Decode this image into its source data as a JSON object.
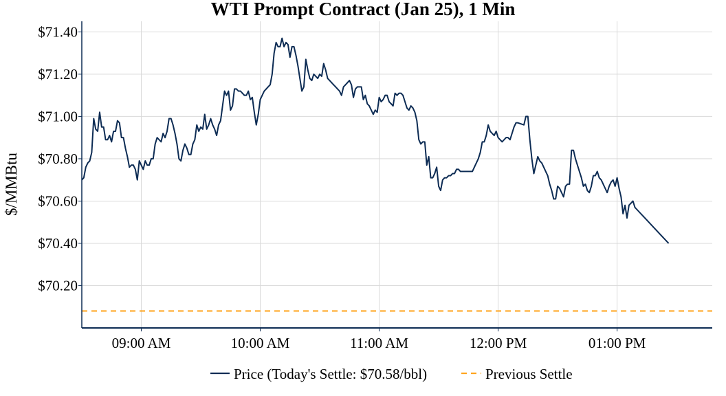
{
  "chart_data": {
    "type": "line",
    "title": "WTI Prompt Contract (Jan 25), 1 Min",
    "xlabel": "",
    "ylabel": "$/MMBtu",
    "x_axis": {
      "ticks": [
        "09:00 AM",
        "10:00 AM",
        "11:00 AM",
        "12:00 PM",
        "01:00 PM"
      ],
      "range": [
        "08:30",
        "13:48"
      ]
    },
    "y_axis": {
      "ticks": [
        "$70.20",
        "$70.40",
        "$70.60",
        "$70.80",
        "$71.00",
        "$71.20",
        "$71.40"
      ],
      "tick_values": [
        70.2,
        70.4,
        70.6,
        70.8,
        71.0,
        71.2,
        71.4
      ],
      "ylim": [
        70.0,
        71.45
      ]
    },
    "grid": true,
    "legend_position": "bottom-center",
    "series": [
      {
        "name": "Price (Today's Settle: $70.58/bbl)",
        "color": "#0d2c54",
        "style": "solid",
        "points": [
          [
            "08:30",
            70.7
          ],
          [
            "08:31",
            70.71
          ],
          [
            "08:32",
            70.76
          ],
          [
            "08:33",
            70.78
          ],
          [
            "08:34",
            70.79
          ],
          [
            "08:35",
            70.83
          ],
          [
            "08:36",
            70.99
          ],
          [
            "08:37",
            70.94
          ],
          [
            "08:38",
            70.93
          ],
          [
            "08:39",
            71.02
          ],
          [
            "08:40",
            70.95
          ],
          [
            "08:41",
            70.95
          ],
          [
            "08:42",
            70.89
          ],
          [
            "08:43",
            70.89
          ],
          [
            "08:44",
            70.91
          ],
          [
            "08:45",
            70.88
          ],
          [
            "08:46",
            70.93
          ],
          [
            "08:47",
            70.93
          ],
          [
            "08:48",
            70.98
          ],
          [
            "08:49",
            70.97
          ],
          [
            "08:50",
            70.9
          ],
          [
            "08:51",
            70.9
          ],
          [
            "08:52",
            70.85
          ],
          [
            "08:53",
            70.81
          ],
          [
            "08:54",
            70.76
          ],
          [
            "08:55",
            70.77
          ],
          [
            "08:56",
            70.77
          ],
          [
            "08:57",
            70.75
          ],
          [
            "08:58",
            70.7
          ],
          [
            "08:59",
            70.79
          ],
          [
            "09:00",
            70.77
          ],
          [
            "09:01",
            70.75
          ],
          [
            "09:02",
            70.79
          ],
          [
            "09:03",
            70.77
          ],
          [
            "09:04",
            70.77
          ],
          [
            "09:05",
            70.8
          ],
          [
            "09:06",
            70.8
          ],
          [
            "09:07",
            70.87
          ],
          [
            "09:08",
            70.9
          ],
          [
            "09:09",
            70.89
          ],
          [
            "09:10",
            70.88
          ],
          [
            "09:11",
            70.92
          ],
          [
            "09:12",
            70.9
          ],
          [
            "09:13",
            70.93
          ],
          [
            "09:14",
            70.99
          ],
          [
            "09:15",
            70.99
          ],
          [
            "09:16",
            70.96
          ],
          [
            "09:17",
            70.92
          ],
          [
            "09:18",
            70.87
          ],
          [
            "09:19",
            70.8
          ],
          [
            "09:20",
            70.79
          ],
          [
            "09:21",
            70.84
          ],
          [
            "09:22",
            70.87
          ],
          [
            "09:23",
            70.85
          ],
          [
            "09:24",
            70.82
          ],
          [
            "09:25",
            70.82
          ],
          [
            "09:26",
            70.87
          ],
          [
            "09:27",
            70.89
          ],
          [
            "09:28",
            70.96
          ],
          [
            "09:29",
            70.93
          ],
          [
            "09:30",
            70.95
          ],
          [
            "09:31",
            70.94
          ],
          [
            "09:32",
            71.01
          ],
          [
            "09:33",
            70.94
          ],
          [
            "09:34",
            70.96
          ],
          [
            "09:35",
            70.99
          ],
          [
            "09:36",
            70.96
          ],
          [
            "09:37",
            70.94
          ],
          [
            "09:38",
            70.91
          ],
          [
            "09:39",
            70.96
          ],
          [
            "09:40",
            70.98
          ],
          [
            "09:41",
            71.05
          ],
          [
            "09:42",
            71.12
          ],
          [
            "09:43",
            71.1
          ],
          [
            "09:44",
            71.12
          ],
          [
            "09:45",
            71.03
          ],
          [
            "09:46",
            71.05
          ],
          [
            "09:47",
            71.13
          ],
          [
            "09:48",
            71.13
          ],
          [
            "09:49",
            71.12
          ],
          [
            "09:50",
            71.12
          ],
          [
            "09:51",
            71.11
          ],
          [
            "09:52",
            71.1
          ],
          [
            "09:53",
            71.1
          ],
          [
            "09:54",
            71.12
          ],
          [
            "09:55",
            71.08
          ],
          [
            "09:56",
            71.09
          ],
          [
            "09:57",
            71.02
          ],
          [
            "09:58",
            70.96
          ],
          [
            "09:59",
            71.01
          ],
          [
            "10:00",
            71.08
          ],
          [
            "10:01",
            71.1
          ],
          [
            "10:02",
            71.12
          ],
          [
            "10:03",
            71.13
          ],
          [
            "10:04",
            71.14
          ],
          [
            "10:05",
            71.15
          ],
          [
            "10:06",
            71.2
          ],
          [
            "10:07",
            71.3
          ],
          [
            "10:08",
            71.35
          ],
          [
            "10:09",
            71.33
          ],
          [
            "10:10",
            71.33
          ],
          [
            "10:11",
            71.37
          ],
          [
            "10:12",
            71.33
          ],
          [
            "10:13",
            71.35
          ],
          [
            "10:14",
            71.34
          ],
          [
            "10:15",
            71.28
          ],
          [
            "10:16",
            71.33
          ],
          [
            "10:17",
            71.33
          ],
          [
            "10:18",
            71.29
          ],
          [
            "10:19",
            71.24
          ],
          [
            "10:20",
            71.18
          ],
          [
            "10:21",
            71.12
          ],
          [
            "10:22",
            71.14
          ],
          [
            "10:23",
            71.27
          ],
          [
            "10:24",
            71.22
          ],
          [
            "10:25",
            71.18
          ],
          [
            "10:26",
            71.17
          ],
          [
            "10:27",
            71.2
          ],
          [
            "10:28",
            71.19
          ],
          [
            "10:29",
            71.18
          ],
          [
            "10:30",
            71.2
          ],
          [
            "10:31",
            71.19
          ],
          [
            "10:32",
            71.25
          ],
          [
            "10:33",
            71.22
          ],
          [
            "10:34",
            71.18
          ],
          [
            "10:35",
            71.17
          ],
          [
            "10:36",
            71.16
          ],
          [
            "10:37",
            71.15
          ],
          [
            "10:38",
            71.14
          ],
          [
            "10:39",
            71.13
          ],
          [
            "10:40",
            71.12
          ],
          [
            "10:41",
            71.1
          ],
          [
            "10:42",
            71.14
          ],
          [
            "10:43",
            71.15
          ],
          [
            "10:44",
            71.16
          ],
          [
            "10:45",
            71.17
          ],
          [
            "10:46",
            71.15
          ],
          [
            "10:47",
            71.09
          ],
          [
            "10:48",
            71.13
          ],
          [
            "10:49",
            71.14
          ],
          [
            "10:50",
            71.14
          ],
          [
            "10:51",
            71.14
          ],
          [
            "10:52",
            71.08
          ],
          [
            "10:53",
            71.1
          ],
          [
            "10:54",
            71.06
          ],
          [
            "10:55",
            71.05
          ],
          [
            "10:56",
            71.03
          ],
          [
            "10:57",
            71.01
          ],
          [
            "10:58",
            71.03
          ],
          [
            "10:59",
            71.02
          ],
          [
            "11:00",
            71.09
          ],
          [
            "11:01",
            71.07
          ],
          [
            "11:02",
            71.08
          ],
          [
            "11:03",
            71.1
          ],
          [
            "11:04",
            71.1
          ],
          [
            "11:05",
            71.07
          ],
          [
            "11:06",
            71.06
          ],
          [
            "11:07",
            71.05
          ],
          [
            "11:08",
            71.11
          ],
          [
            "11:09",
            71.1
          ],
          [
            "11:10",
            71.11
          ],
          [
            "11:11",
            71.11
          ],
          [
            "11:12",
            71.1
          ],
          [
            "11:13",
            71.07
          ],
          [
            "11:14",
            71.04
          ],
          [
            "11:15",
            71.03
          ],
          [
            "11:16",
            71.05
          ],
          [
            "11:17",
            71.04
          ],
          [
            "11:18",
            71.02
          ],
          [
            "11:19",
            70.98
          ],
          [
            "11:20",
            70.89
          ],
          [
            "11:21",
            70.87
          ],
          [
            "11:22",
            70.88
          ],
          [
            "11:23",
            70.88
          ],
          [
            "11:24",
            70.77
          ],
          [
            "11:25",
            70.81
          ],
          [
            "11:26",
            70.71
          ],
          [
            "11:27",
            70.71
          ],
          [
            "11:28",
            70.73
          ],
          [
            "11:29",
            70.76
          ],
          [
            "11:30",
            70.67
          ],
          [
            "11:31",
            70.65
          ],
          [
            "11:32",
            70.7
          ],
          [
            "11:33",
            70.71
          ],
          [
            "11:34",
            70.71
          ],
          [
            "11:35",
            70.72
          ],
          [
            "11:36",
            70.72
          ],
          [
            "11:37",
            70.73
          ],
          [
            "11:38",
            70.73
          ],
          [
            "11:39",
            70.75
          ],
          [
            "11:40",
            70.75
          ],
          [
            "11:41",
            70.74
          ],
          [
            "11:42",
            70.74
          ],
          [
            "11:47",
            70.74
          ],
          [
            "11:48",
            70.76
          ],
          [
            "11:49",
            70.78
          ],
          [
            "11:50",
            70.8
          ],
          [
            "11:51",
            70.83
          ],
          [
            "11:52",
            70.88
          ],
          [
            "11:53",
            70.88
          ],
          [
            "11:54",
            70.91
          ],
          [
            "11:55",
            70.96
          ],
          [
            "11:56",
            70.93
          ],
          [
            "11:57",
            70.92
          ],
          [
            "11:58",
            70.91
          ],
          [
            "11:59",
            70.93
          ],
          [
            "12:00",
            70.9
          ],
          [
            "12:01",
            70.89
          ],
          [
            "12:02",
            70.88
          ],
          [
            "12:03",
            70.89
          ],
          [
            "12:04",
            70.9
          ],
          [
            "12:05",
            70.9
          ],
          [
            "12:06",
            70.89
          ],
          [
            "12:07",
            70.92
          ],
          [
            "12:08",
            70.95
          ],
          [
            "12:09",
            70.97
          ],
          [
            "12:10",
            70.97
          ],
          [
            "12:13",
            70.96
          ],
          [
            "12:14",
            71.0
          ],
          [
            "12:15",
            71.0
          ],
          [
            "12:16",
            70.89
          ],
          [
            "12:17",
            70.8
          ],
          [
            "12:18",
            70.73
          ],
          [
            "12:19",
            70.77
          ],
          [
            "12:20",
            70.81
          ],
          [
            "12:21",
            70.79
          ],
          [
            "12:22",
            70.78
          ],
          [
            "12:23",
            70.76
          ],
          [
            "12:24",
            70.74
          ],
          [
            "12:25",
            70.72
          ],
          [
            "12:26",
            70.68
          ],
          [
            "12:27",
            70.65
          ],
          [
            "12:28",
            70.61
          ],
          [
            "12:29",
            70.61
          ],
          [
            "12:30",
            70.67
          ],
          [
            "12:31",
            70.66
          ],
          [
            "12:32",
            70.64
          ],
          [
            "12:33",
            70.62
          ],
          [
            "12:34",
            70.67
          ],
          [
            "12:35",
            70.68
          ],
          [
            "12:36",
            70.68
          ],
          [
            "12:37",
            70.84
          ],
          [
            "12:38",
            70.84
          ],
          [
            "12:39",
            70.8
          ],
          [
            "12:40",
            70.77
          ],
          [
            "12:41",
            70.74
          ],
          [
            "12:42",
            70.71
          ],
          [
            "12:43",
            70.67
          ],
          [
            "12:44",
            70.68
          ],
          [
            "12:45",
            70.65
          ],
          [
            "12:46",
            70.64
          ],
          [
            "12:47",
            70.67
          ],
          [
            "12:48",
            70.72
          ],
          [
            "12:49",
            70.72
          ],
          [
            "12:50",
            70.74
          ],
          [
            "12:51",
            70.71
          ],
          [
            "12:52",
            70.7
          ],
          [
            "12:53",
            70.68
          ],
          [
            "12:54",
            70.66
          ],
          [
            "12:55",
            70.64
          ],
          [
            "12:56",
            70.67
          ],
          [
            "12:57",
            70.69
          ],
          [
            "12:58",
            70.7
          ],
          [
            "12:59",
            70.67
          ],
          [
            "13:00",
            70.71
          ],
          [
            "13:01",
            70.66
          ],
          [
            "13:02",
            70.62
          ],
          [
            "13:03",
            70.54
          ],
          [
            "13:04",
            70.58
          ],
          [
            "13:05",
            70.52
          ],
          [
            "13:06",
            70.58
          ],
          [
            "13:07",
            70.59
          ],
          [
            "13:08",
            70.6
          ],
          [
            "13:09",
            70.57
          ],
          [
            "13:10",
            70.56
          ],
          [
            "13:13",
            70.53
          ],
          [
            "13:16",
            70.5
          ],
          [
            "13:20",
            70.46
          ],
          [
            "13:24",
            70.42
          ],
          [
            "13:26",
            70.4
          ]
        ]
      },
      {
        "name": "Previous Settle",
        "color": "#ffa51f",
        "style": "dashed",
        "value": 70.08
      }
    ]
  }
}
